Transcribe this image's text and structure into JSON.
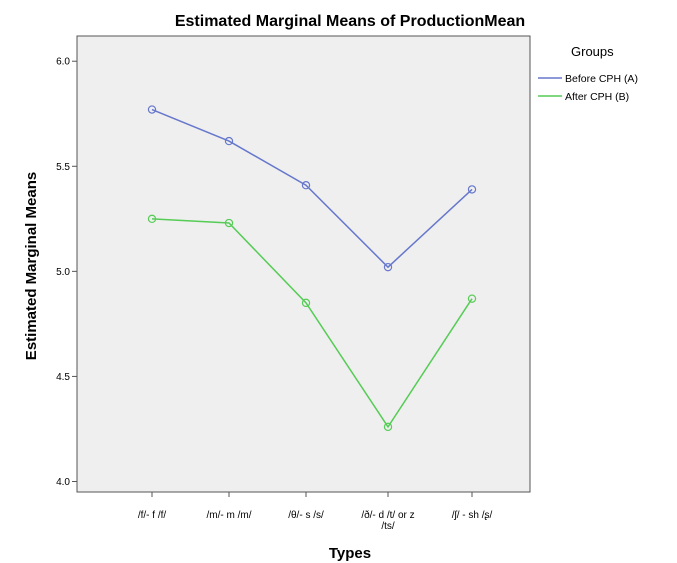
{
  "chart_data": {
    "type": "line",
    "title": "Estimated Marginal Means of ProductionMean",
    "xlabel": "Types",
    "ylabel": "Estimated Marginal Means",
    "categories": [
      "/f/- f /f/",
      "/m/- m /m/",
      "/θ/- s /s/",
      "/ð/- d /t/ or z /ts/",
      "/ʃ/  - sh /ʂ/"
    ],
    "category_lines": [
      [
        "/f/- f /f/"
      ],
      [
        "/m/- m /m/"
      ],
      [
        "/θ/- s /s/"
      ],
      [
        "/ð/- d /t/ or z",
        "/ts/"
      ],
      [
        "/ʃ/  - sh /ʂ/"
      ]
    ],
    "y_ticks": [
      "4.0",
      "4.5",
      "5.0",
      "5.5",
      "6.0"
    ],
    "ylim": [
      3.95,
      6.12
    ],
    "grid": false,
    "legend": {
      "title": "Groups",
      "position": "right"
    },
    "series": [
      {
        "name": "Before CPH (A)",
        "color": "#6677cc",
        "values": [
          5.77,
          5.62,
          5.41,
          5.02,
          5.39
        ]
      },
      {
        "name": "After CPH (B)",
        "color": "#55cc55",
        "values": [
          5.25,
          5.23,
          4.85,
          4.26,
          4.87
        ]
      }
    ],
    "plot_background": "#efefef"
  }
}
